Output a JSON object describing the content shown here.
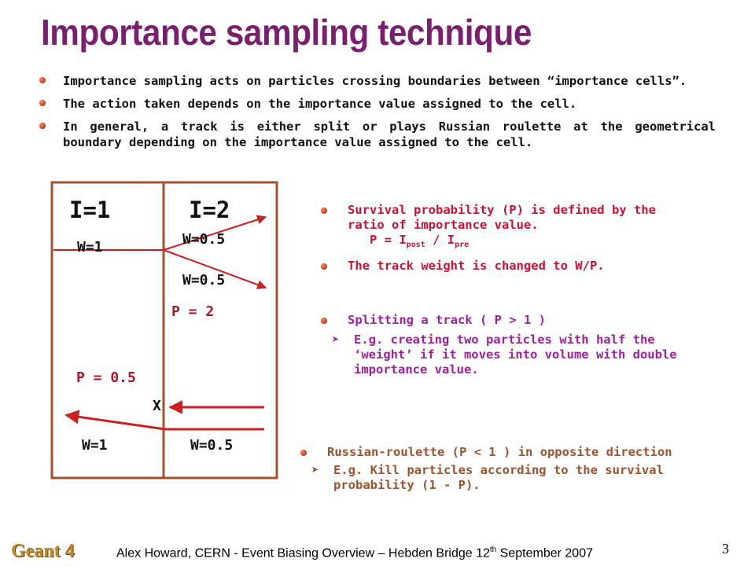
{
  "title": "Importance sampling technique",
  "bullets": [
    "Importance sampling acts on particles crossing boundaries between “importance cells”.",
    "The action taken depends on the importance value assigned to the cell.",
    "In general,  a track is either split or plays Russian roulette at the geometrical boundary depending on the importance value assigned to the cell."
  ],
  "diagram": {
    "cell1_label": "I=1",
    "cell2_label": "I=2",
    "split": {
      "w_in": "W=1",
      "w_out_top": "W=0.5",
      "w_out_bottom": "W=0.5",
      "p": "P = 2"
    },
    "roulette": {
      "p": "P = 0.5",
      "kill_mark": "X",
      "w_out": "W=1",
      "w_in": "W=0.5"
    }
  },
  "survival": {
    "line1": "Survival probability (P) is defined by the ratio of importance value.",
    "formula_prefix": "P = I",
    "formula_sub1": "post",
    "formula_mid": " / I",
    "formula_sub2": "pre",
    "line2": "The track weight is changed to W/P."
  },
  "splitting": {
    "heading": "Splitting a track   ( P > 1 )",
    "example": "E.g. creating two particles with half the ‘weight’ if it moves into volume with double  importance value."
  },
  "roulette_text": {
    "heading": "Russian-roulette (P < 1 ) in opposite direction",
    "example": "E.g. Kill particles according to the survival probability (1 - P)."
  },
  "footer": {
    "logo": "Geant 4",
    "text_pre": "Alex Howard, CERN - Event Biasing Overview – Hebden Bridge 12",
    "text_sup": "th",
    "text_post": " September 2007",
    "page_number": "3"
  },
  "colors": {
    "title": "#7a1f6e",
    "box": "#a0522d",
    "arrow": "#cc1f1f",
    "survival_text": "#cc1133",
    "splitting_text": "#a020a0",
    "roulette_text": "#a0522d"
  }
}
